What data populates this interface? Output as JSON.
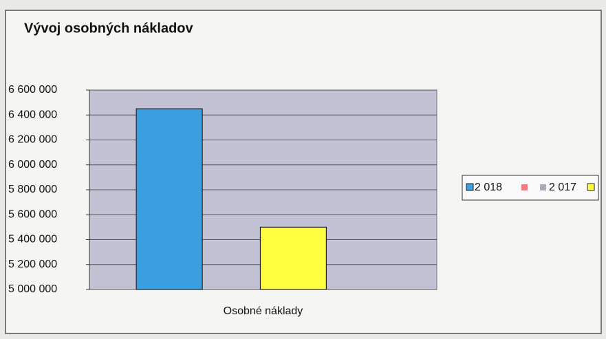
{
  "chart_data": {
    "type": "bar",
    "title": "Vývoj osobných nákladov",
    "categories": [
      "Osobné náklady"
    ],
    "series": [
      {
        "name": "2 018",
        "color": "#3a9fe0",
        "values": [
          6450000
        ]
      },
      {
        "name": "2 017",
        "color": "#ffff40",
        "values": [
          5500000
        ]
      }
    ],
    "ylim": [
      5000000,
      6600000
    ],
    "yticks": [
      {
        "value": 5000000,
        "label": "5 000 000"
      },
      {
        "value": 5200000,
        "label": "5 200 000"
      },
      {
        "value": 5400000,
        "label": "5 400 000"
      },
      {
        "value": 5600000,
        "label": "5 600 000"
      },
      {
        "value": 5800000,
        "label": "5 800 000"
      },
      {
        "value": 6000000,
        "label": "6 000 000"
      },
      {
        "value": 6200000,
        "label": "6 200 000"
      },
      {
        "value": 6400000,
        "label": "6 400 000"
      },
      {
        "value": 6600000,
        "label": "6 600 000"
      }
    ],
    "grid": true,
    "legend": "right"
  }
}
